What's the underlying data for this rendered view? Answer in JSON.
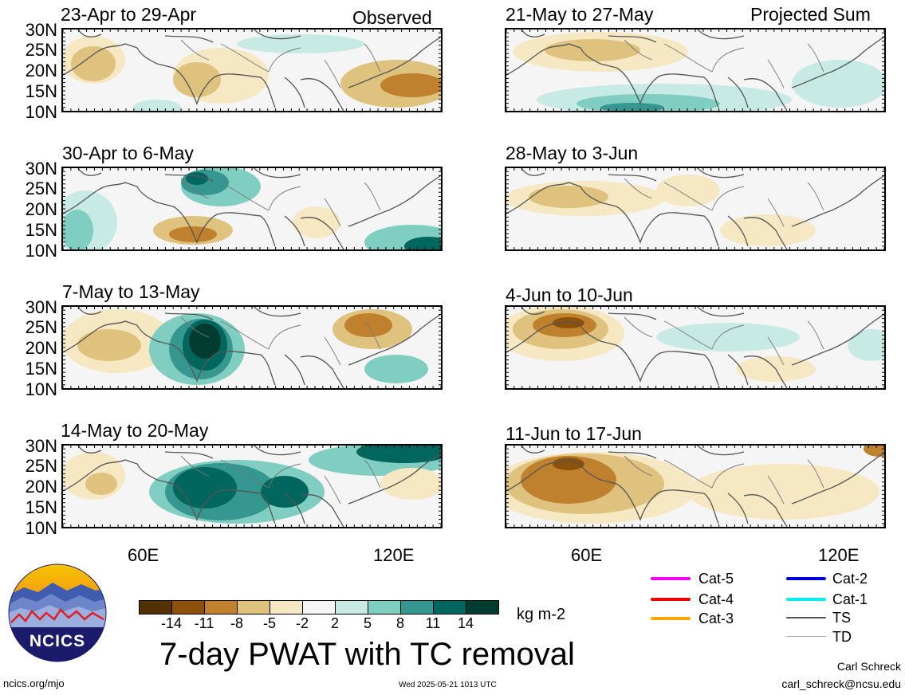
{
  "panels": [
    {
      "title": "23-Apr to 29-Apr",
      "tag": "Observed"
    },
    {
      "title": "21-May to 27-May",
      "tag": "Projected Sum"
    },
    {
      "title": "30-Apr to 6-May",
      "tag": ""
    },
    {
      "title": "28-May to 3-Jun",
      "tag": ""
    },
    {
      "title": "7-May to 13-May",
      "tag": ""
    },
    {
      "title": "4-Jun to 10-Jun",
      "tag": ""
    },
    {
      "title": "14-May to 20-May",
      "tag": ""
    },
    {
      "title": "11-Jun to 17-Jun",
      "tag": ""
    }
  ],
  "lat_labels": [
    "30N",
    "25N",
    "20N",
    "15N",
    "10N"
  ],
  "lon_labels": [
    "60E",
    "120E"
  ],
  "colorbar": {
    "colors": [
      "#543005",
      "#8c510a",
      "#bf812d",
      "#dfc27d",
      "#f6e8c3",
      "#f5f5f5",
      "#c7eae5",
      "#80cdc1",
      "#35978f",
      "#01665e",
      "#003c30"
    ],
    "ticks": [
      "-14",
      "-11",
      "-8",
      "-5",
      "-2",
      "2",
      "5",
      "8",
      "11",
      "14"
    ],
    "units": "kg m-2"
  },
  "title": "7-day PWAT with TC removal",
  "logo_text": "NCICS",
  "website": "ncics.org/mjo",
  "timestamp": "Wed 2025-05-21 1013 UTC",
  "author": "Carl Schreck",
  "email": "carl_schreck@ncsu.edu",
  "tc_legend": [
    {
      "label": "Cat-5",
      "color": "#ff00ff"
    },
    {
      "label": "Cat-4",
      "color": "#ee0000"
    },
    {
      "label": "Cat-3",
      "color": "#ffa500"
    },
    {
      "label": "Cat-2",
      "color": "#0000dd"
    },
    {
      "label": "Cat-1",
      "color": "#00eeee"
    },
    {
      "label": "TS",
      "color": "#555555"
    },
    {
      "label": "TD",
      "color": "#aaaaaa"
    }
  ]
}
